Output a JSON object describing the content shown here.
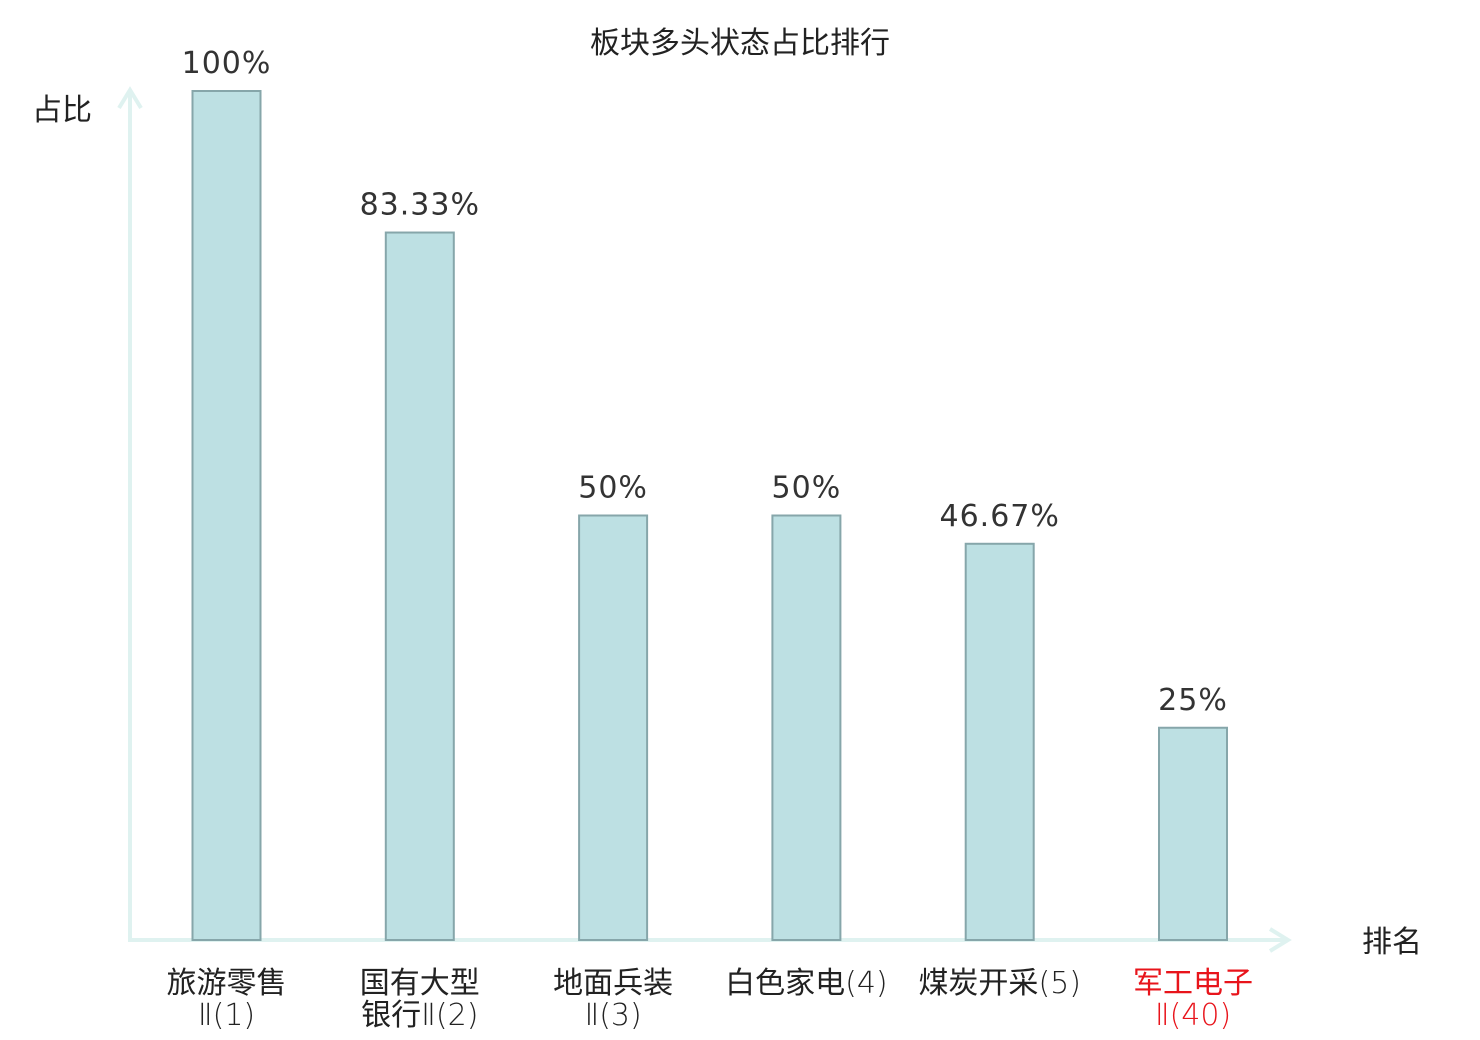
{
  "chart_data": {
    "type": "bar",
    "title": "板块多头状态占比排行",
    "ylabel": "占比",
    "xlabel": "排名",
    "ylim": [
      0,
      100
    ],
    "grid": false,
    "categories": [
      {
        "lines": [
          {
            "main": "旅游零售",
            "suffix": ""
          },
          {
            "main": "",
            "suffix": "Ⅱ(1)"
          }
        ],
        "highlight": false
      },
      {
        "lines": [
          {
            "main": "国有大型",
            "suffix": ""
          },
          {
            "main": "银行",
            "suffix": "Ⅱ(2)"
          }
        ],
        "highlight": false
      },
      {
        "lines": [
          {
            "main": "地面兵装",
            "suffix": ""
          },
          {
            "main": "",
            "suffix": "Ⅱ(3)"
          }
        ],
        "highlight": false
      },
      {
        "lines": [
          {
            "main": "白色家电",
            "suffix": "(4)"
          }
        ],
        "highlight": false
      },
      {
        "lines": [
          {
            "main": "煤炭开采",
            "suffix": "(5)"
          }
        ],
        "highlight": false
      },
      {
        "lines": [
          {
            "main": "军工电子",
            "suffix": ""
          },
          {
            "main": "",
            "suffix": "Ⅱ(40)"
          }
        ],
        "highlight": true
      }
    ],
    "values": [
      100,
      83.33,
      50,
      50,
      46.67,
      25
    ],
    "value_labels": [
      "100%",
      "83.33%",
      "50%",
      "50%",
      "46.67%",
      "25%"
    ],
    "colors": {
      "bar_fill": "#bde0e3",
      "bar_stroke": "#86a6aa",
      "axis": "#dff2f0",
      "label_text": "#222222",
      "highlight_text": "#e8141b"
    }
  }
}
